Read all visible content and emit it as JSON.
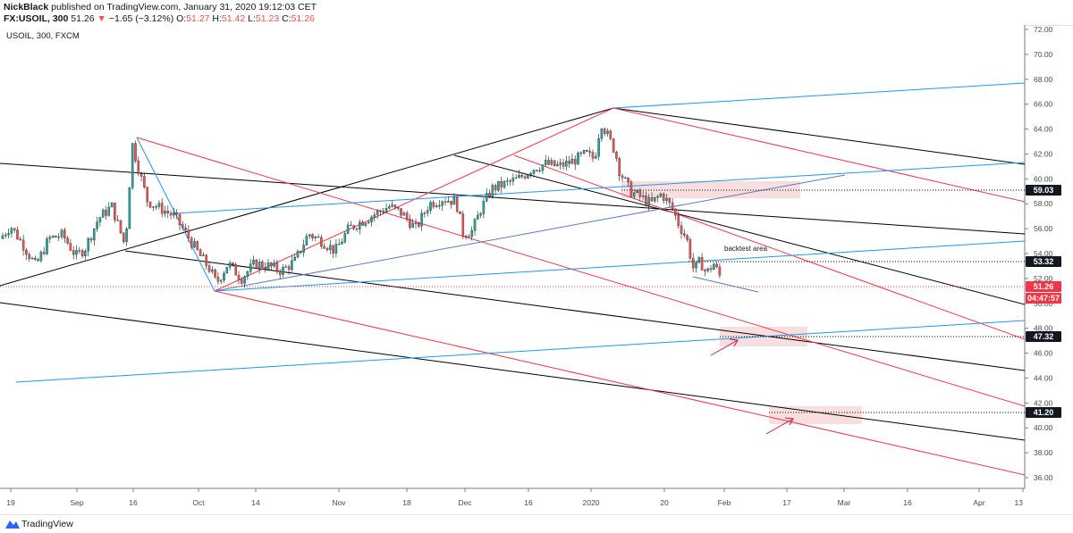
{
  "header": {
    "author": "NickBlack",
    "published": "published on TradingView.com, January 31, 2020 19:12:03 CET",
    "symbol": "FX:USOIL, 300",
    "last": "51.26",
    "change_arrow": "▼",
    "change": "−1.65 (−3.12%)",
    "o_label": "O:",
    "o_value": "51.27",
    "h_label": "H:",
    "h_value": "51.42",
    "l_label": "L:",
    "l_value": "51.23",
    "c_label": "C:",
    "c_value": "51.26"
  },
  "legend": "USOIL, 300, FXCM",
  "footer": {
    "brand": "TradingView"
  },
  "colors": {
    "up": "#26a69a",
    "down": "#ef5350",
    "black_line": "#000000",
    "red_line": "#f23645",
    "blue_line": "#2196f3",
    "zone": "#f8dede"
  },
  "chart_data": {
    "type": "candlestick",
    "symbol": "USOIL",
    "interval": "300",
    "y_ticks": [
      "72.00",
      "70.00",
      "68.00",
      "66.00",
      "64.00",
      "62.00",
      "60.00",
      "58.00",
      "56.00",
      "54.00",
      "52.00",
      "50.00",
      "48.00",
      "46.00",
      "44.00",
      "42.00",
      "40.00",
      "38.00",
      "36.00"
    ],
    "ylim": [
      35,
      73
    ],
    "x_ticks": [
      "19",
      "Sep",
      "16",
      "Oct",
      "14",
      "Nov",
      "18",
      "Dec",
      "16",
      "2020",
      "20",
      "Feb",
      "17",
      "Mar",
      "16",
      "Apr",
      "13"
    ],
    "price_labels": [
      {
        "value": "59.03",
        "style": "dark"
      },
      {
        "value": "53.32",
        "style": "dark"
      },
      {
        "value": "51.26",
        "style": "red"
      },
      {
        "value": "04:47:57",
        "style": "red"
      },
      {
        "value": "47.32",
        "style": "dark"
      },
      {
        "value": "41.20",
        "style": "dark"
      }
    ],
    "annotations": [
      "backtest area"
    ],
    "close_path": [
      [
        0,
        55.2
      ],
      [
        12,
        56.2
      ],
      [
        25,
        54.8
      ],
      [
        40,
        53.0
      ],
      [
        55,
        55.2
      ],
      [
        70,
        55.5
      ],
      [
        85,
        53.8
      ],
      [
        95,
        54.4
      ],
      [
        110,
        56.8
      ],
      [
        125,
        57.8
      ],
      [
        140,
        54.6
      ],
      [
        148,
        62.8
      ],
      [
        155,
        60.8
      ],
      [
        165,
        58.2
      ],
      [
        180,
        57.6
      ],
      [
        195,
        57.0
      ],
      [
        210,
        55.4
      ],
      [
        222,
        54.0
      ],
      [
        235,
        52.7
      ],
      [
        242,
        51.6
      ],
      [
        255,
        53.2
      ],
      [
        270,
        52.0
      ],
      [
        285,
        53.2
      ],
      [
        300,
        53.0
      ],
      [
        315,
        52.6
      ],
      [
        330,
        53.4
      ],
      [
        345,
        55.6
      ],
      [
        360,
        55.0
      ],
      [
        375,
        54.2
      ],
      [
        390,
        56.0
      ],
      [
        405,
        56.6
      ],
      [
        420,
        57.2
      ],
      [
        435,
        57.8
      ],
      [
        450,
        57.2
      ],
      [
        465,
        56.0
      ],
      [
        480,
        58.0
      ],
      [
        495,
        58.4
      ],
      [
        510,
        58.2
      ],
      [
        518,
        55.6
      ],
      [
        528,
        55.8
      ],
      [
        538,
        57.6
      ],
      [
        550,
        59.2
      ],
      [
        565,
        59.6
      ],
      [
        580,
        60.0
      ],
      [
        595,
        60.8
      ],
      [
        610,
        61.2
      ],
      [
        625,
        61.0
      ],
      [
        640,
        61.4
      ],
      [
        655,
        62.0
      ],
      [
        665,
        61.6
      ],
      [
        672,
        64.6
      ],
      [
        680,
        63.4
      ],
      [
        688,
        62.2
      ],
      [
        693,
        60.6
      ],
      [
        705,
        59.0
      ],
      [
        715,
        58.6
      ],
      [
        728,
        58.0
      ],
      [
        740,
        58.8
      ],
      [
        752,
        57.6
      ],
      [
        760,
        56.2
      ],
      [
        768,
        55.2
      ],
      [
        776,
        52.6
      ],
      [
        783,
        53.4
      ],
      [
        790,
        52.4
      ],
      [
        798,
        53.2
      ],
      [
        805,
        52.2
      ],
      [
        808,
        51.26
      ]
    ],
    "drawings": "pitchfork channels (black, red, blue)"
  }
}
